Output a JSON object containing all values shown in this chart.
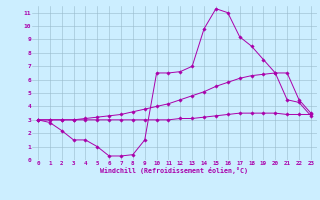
{
  "title": "",
  "xlabel": "Windchill (Refroidissement éolien,°C)",
  "bg_color": "#cceeff",
  "line_color": "#aa00aa",
  "grid_color": "#99bbcc",
  "xlim": [
    -0.5,
    23.5
  ],
  "ylim": [
    0,
    11.5
  ],
  "xticks": [
    0,
    1,
    2,
    3,
    4,
    5,
    6,
    7,
    8,
    9,
    10,
    11,
    12,
    13,
    14,
    15,
    16,
    17,
    18,
    19,
    20,
    21,
    22,
    23
  ],
  "yticks": [
    0,
    1,
    2,
    3,
    4,
    5,
    6,
    7,
    8,
    9,
    10,
    11
  ],
  "line1_x": [
    0,
    1,
    2,
    3,
    4,
    5,
    6,
    7,
    8,
    9,
    10,
    11,
    12,
    13,
    14,
    15,
    16,
    17,
    18,
    19,
    20,
    21,
    22,
    23
  ],
  "line1_y": [
    3.0,
    2.8,
    2.2,
    1.5,
    1.5,
    1.0,
    0.3,
    0.3,
    0.4,
    1.5,
    6.5,
    6.5,
    6.6,
    7.0,
    9.8,
    11.3,
    11.0,
    9.2,
    8.5,
    7.5,
    6.5,
    4.5,
    4.3,
    3.3
  ],
  "line2_x": [
    0,
    1,
    2,
    3,
    4,
    5,
    6,
    7,
    8,
    9,
    10,
    11,
    12,
    13,
    14,
    15,
    16,
    17,
    18,
    19,
    20,
    21,
    22,
    23
  ],
  "line2_y": [
    3.0,
    3.0,
    3.0,
    3.0,
    3.1,
    3.2,
    3.3,
    3.4,
    3.6,
    3.8,
    4.0,
    4.2,
    4.5,
    4.8,
    5.1,
    5.5,
    5.8,
    6.1,
    6.3,
    6.4,
    6.5,
    6.5,
    4.5,
    3.5
  ],
  "line3_x": [
    0,
    1,
    2,
    3,
    4,
    5,
    6,
    7,
    8,
    9,
    10,
    11,
    12,
    13,
    14,
    15,
    16,
    17,
    18,
    19,
    20,
    21,
    22,
    23
  ],
  "line3_y": [
    3.0,
    3.0,
    3.0,
    3.0,
    3.0,
    3.0,
    3.0,
    3.0,
    3.0,
    3.0,
    3.0,
    3.0,
    3.1,
    3.1,
    3.2,
    3.3,
    3.4,
    3.5,
    3.5,
    3.5,
    3.5,
    3.4,
    3.4,
    3.4
  ]
}
